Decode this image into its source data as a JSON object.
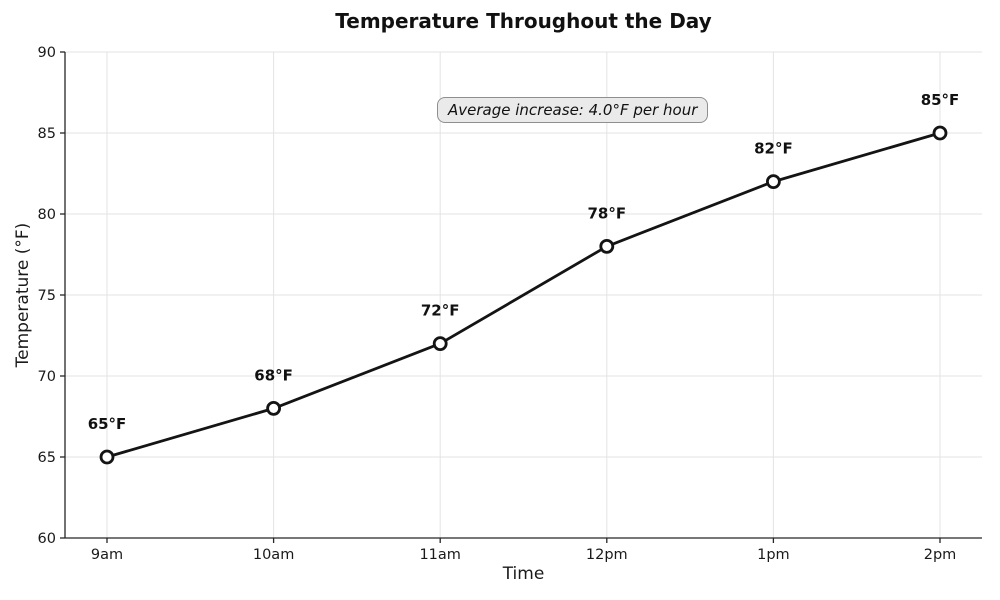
{
  "chart_data": {
    "type": "line",
    "title": "Temperature Throughout the Day",
    "xlabel": "Time",
    "ylabel": "Temperature (°F)",
    "annotation": "Average increase: 4.0°F per hour",
    "categories": [
      "9am",
      "10am",
      "11am",
      "12pm",
      "1pm",
      "2pm"
    ],
    "series": [
      {
        "name": "temperature",
        "values": [
          65,
          68,
          72,
          78,
          82,
          85
        ]
      }
    ],
    "point_labels": [
      "65°F",
      "68°F",
      "72°F",
      "78°F",
      "82°F",
      "85°F"
    ],
    "y_ticks": [
      60,
      65,
      70,
      75,
      80,
      85,
      90
    ],
    "ylim": [
      60,
      90
    ],
    "grid": true,
    "legend": "none",
    "line_color": "#141414",
    "marker_fill": "#ffffff",
    "grid_color": "#e3e3e3",
    "spine_color": "#262626"
  }
}
